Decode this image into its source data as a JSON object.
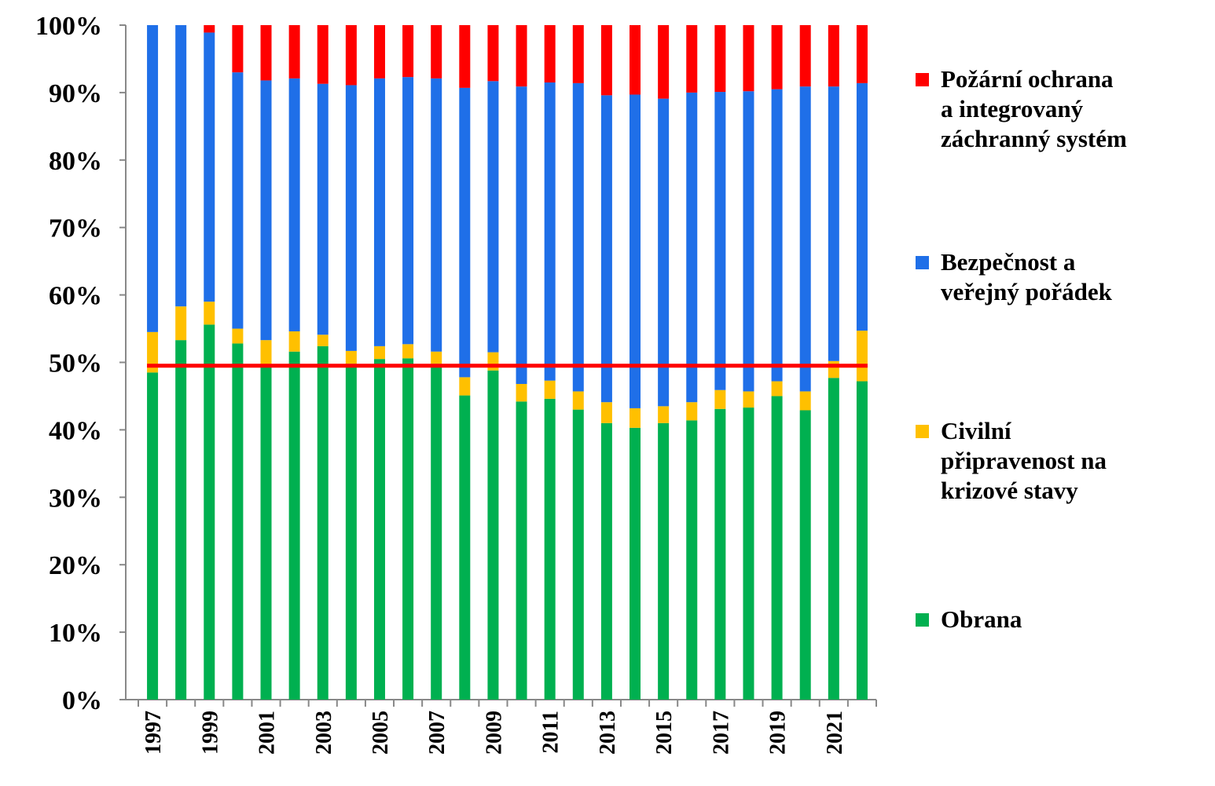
{
  "chart_data": {
    "type": "stacked_bar",
    "categories": [
      "1997",
      null,
      "1999",
      null,
      "2001",
      null,
      "2003",
      null,
      "2005",
      null,
      "2007",
      null,
      "2009",
      null,
      "2011",
      null,
      "2013",
      null,
      "2015",
      null,
      "2017",
      null,
      "2019",
      null,
      "2021",
      null
    ],
    "series": [
      {
        "name": "Obrana",
        "color": "#00b050",
        "values": [
          48.5,
          53.3,
          55.6,
          52.8,
          49.5,
          51.6,
          52.4,
          49.8,
          50.5,
          50.6,
          49.8,
          45.1,
          48.8,
          44.2,
          44.6,
          43.0,
          41.0,
          40.3,
          41.0,
          41.4,
          43.1,
          43.3,
          45.0,
          42.9,
          47.7,
          47.2
        ]
      },
      {
        "name": "Civilní\npřipravenost na\nkrizové stavy",
        "color": "#ffc000",
        "values": [
          6.0,
          5.0,
          3.4,
          2.2,
          3.8,
          3.0,
          1.7,
          1.9,
          1.9,
          2.1,
          1.8,
          2.7,
          2.7,
          2.6,
          2.7,
          2.7,
          3.1,
          2.9,
          2.5,
          2.7,
          2.8,
          2.4,
          2.2,
          2.8,
          2.5,
          7.5
        ]
      },
      {
        "name": "Bezpečnost a\nveřejný pořádek",
        "color": "#1f6fe8",
        "values": [
          45.5,
          41.7,
          39.9,
          38.0,
          38.5,
          37.5,
          37.2,
          39.4,
          39.7,
          39.6,
          40.5,
          42.9,
          40.2,
          44.1,
          44.2,
          45.7,
          45.5,
          46.5,
          45.6,
          45.9,
          44.2,
          44.5,
          43.3,
          45.2,
          40.7,
          36.7
        ]
      },
      {
        "name": "Požární ochrana\na integrovaný\nzáchranný systém",
        "color": "#ff0000",
        "values": [
          0,
          0,
          1.1,
          7.0,
          8.2,
          7.9,
          8.7,
          8.9,
          7.9,
          7.7,
          7.9,
          9.3,
          8.3,
          9.1,
          8.5,
          8.6,
          10.4,
          10.3,
          10.9,
          10.0,
          9.9,
          9.8,
          9.5,
          9.1,
          9.1,
          8.6
        ]
      }
    ],
    "ylim": [
      0,
      100
    ],
    "yticks": [
      {
        "value": 0,
        "label": "0%"
      },
      {
        "value": 10,
        "label": "10%"
      },
      {
        "value": 20,
        "label": "20%"
      },
      {
        "value": 30,
        "label": "30%"
      },
      {
        "value": 40,
        "label": "40%"
      },
      {
        "value": 50,
        "label": "50%"
      },
      {
        "value": 60,
        "label": "60%"
      },
      {
        "value": 70,
        "label": "70%"
      },
      {
        "value": 80,
        "label": "80%"
      },
      {
        "value": 90,
        "label": "90%"
      },
      {
        "value": 100,
        "label": "100%"
      }
    ],
    "reference_line": {
      "value": 49.5,
      "color": "#ff0000"
    },
    "legend": "right"
  }
}
